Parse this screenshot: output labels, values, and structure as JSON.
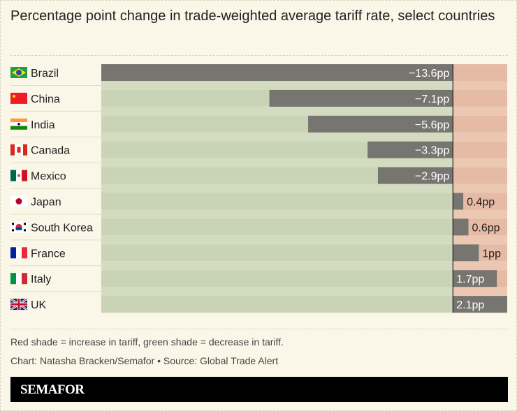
{
  "title": "Percentage point change in trade-weighted average tariff rate, select countries",
  "chart_data": {
    "type": "bar",
    "orientation": "horizontal",
    "categories": [
      "Brazil",
      "China",
      "India",
      "Canada",
      "Mexico",
      "Japan",
      "South Korea",
      "France",
      "Italy",
      "UK"
    ],
    "values": [
      -13.6,
      -7.1,
      -5.6,
      -3.3,
      -2.9,
      0.4,
      0.6,
      1,
      1.7,
      2.1
    ],
    "value_labels": [
      "−13.6pp",
      "−7.1pp",
      "−5.6pp",
      "−3.3pp",
      "−2.9pp",
      "0.4pp",
      "0.6pp",
      "1pp",
      "1.7pp",
      "2.1pp"
    ],
    "flags": [
      "brazil-flag",
      "china-flag",
      "india-flag",
      "canada-flag",
      "mexico-flag",
      "japan-flag",
      "south-korea-flag",
      "france-flag",
      "italy-flag",
      "uk-flag"
    ],
    "xlim": [
      -13.6,
      2.1
    ],
    "grid": false,
    "colors": {
      "bar": "#777570",
      "decrease_shade": "#c9d3b5",
      "decrease_shade_light": "#d3dbc1",
      "increase_shade": "#e6bba6",
      "increase_shade_light": "#ecc7b1",
      "zero_line": "#222222"
    }
  },
  "note": "Red shade = increase in tariff, green shade = decrease in tariff.",
  "credit": "Chart: Natasha Bracken/Semafor • Source: Global Trade Alert",
  "brand": "SEMAFOR"
}
